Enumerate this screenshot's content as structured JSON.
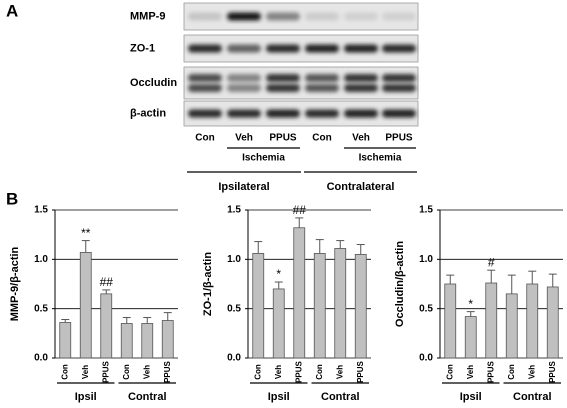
{
  "blot": {
    "panel": "A",
    "rows": [
      "MMP-9",
      "ZO-1",
      "Occludin",
      "β-actin"
    ],
    "lanes": [
      "Con",
      "Veh",
      "PPUS",
      "Con",
      "Veh",
      "PPUS"
    ],
    "treatment": [
      "Ischemia",
      "Ischemia"
    ],
    "sides": [
      "Ipsilateral",
      "Contralateral"
    ]
  },
  "panel_b": "B",
  "chart_data": [
    {
      "type": "bar",
      "y_label": "MMP-9/β-actin",
      "categories": [
        "Con",
        "Veh",
        "PPUS",
        "Con",
        "Veh",
        "PPUS"
      ],
      "groups": [
        "Ipsil",
        "Contral"
      ],
      "values": [
        0.36,
        1.07,
        0.65,
        0.35,
        0.35,
        0.38
      ],
      "errors": [
        0.03,
        0.12,
        0.04,
        0.06,
        0.06,
        0.08
      ],
      "annotations": [
        {
          "index": 1,
          "text": "**"
        },
        {
          "index": 2,
          "text": "##"
        }
      ],
      "color": "#c0c0c0",
      "ylim": [
        0,
        1.5
      ],
      "yticks": [
        {
          "value": 0,
          "label": "0.0"
        },
        0.5,
        {
          "value": 1,
          "label": "1.0"
        },
        1.5
      ],
      "grid": true
    },
    {
      "type": "bar",
      "y_label": "ZO-1/β-actin",
      "categories": [
        "Con",
        "Veh",
        "PPUS",
        "Con",
        "Veh",
        "PPUS"
      ],
      "groups": [
        "Ipsil",
        "Contral"
      ],
      "values": [
        1.06,
        0.7,
        1.32,
        1.06,
        1.11,
        1.05
      ],
      "errors": [
        0.12,
        0.07,
        0.1,
        0.14,
        0.08,
        0.1
      ],
      "annotations": [
        {
          "index": 1,
          "text": "*"
        },
        {
          "index": 2,
          "text": "##"
        }
      ],
      "color": "#c0c0c0",
      "ylim": [
        0,
        1.5
      ],
      "yticks": [
        {
          "value": 0,
          "label": "0.0"
        },
        0.5,
        {
          "value": 1,
          "label": "1.0"
        },
        1.5
      ],
      "grid": true
    },
    {
      "type": "bar",
      "y_label": "Occludin/β-actin",
      "categories": [
        "Con",
        "Veh",
        "PPUS",
        "Con",
        "Veh",
        "PPUS"
      ],
      "groups": [
        "Ipsil",
        "Contral"
      ],
      "values": [
        0.75,
        0.42,
        0.76,
        0.65,
        0.75,
        0.72
      ],
      "errors": [
        0.09,
        0.05,
        0.13,
        0.19,
        0.13,
        0.13
      ],
      "annotations": [
        {
          "index": 1,
          "text": "*"
        },
        {
          "index": 2,
          "text": "#"
        }
      ],
      "color": "#c0c0c0",
      "ylim": [
        0,
        1.5
      ],
      "yticks": [
        {
          "value": 0,
          "label": "0.0"
        },
        0.5,
        {
          "value": 1,
          "label": "1.0"
        },
        1.5
      ],
      "grid": true
    }
  ]
}
